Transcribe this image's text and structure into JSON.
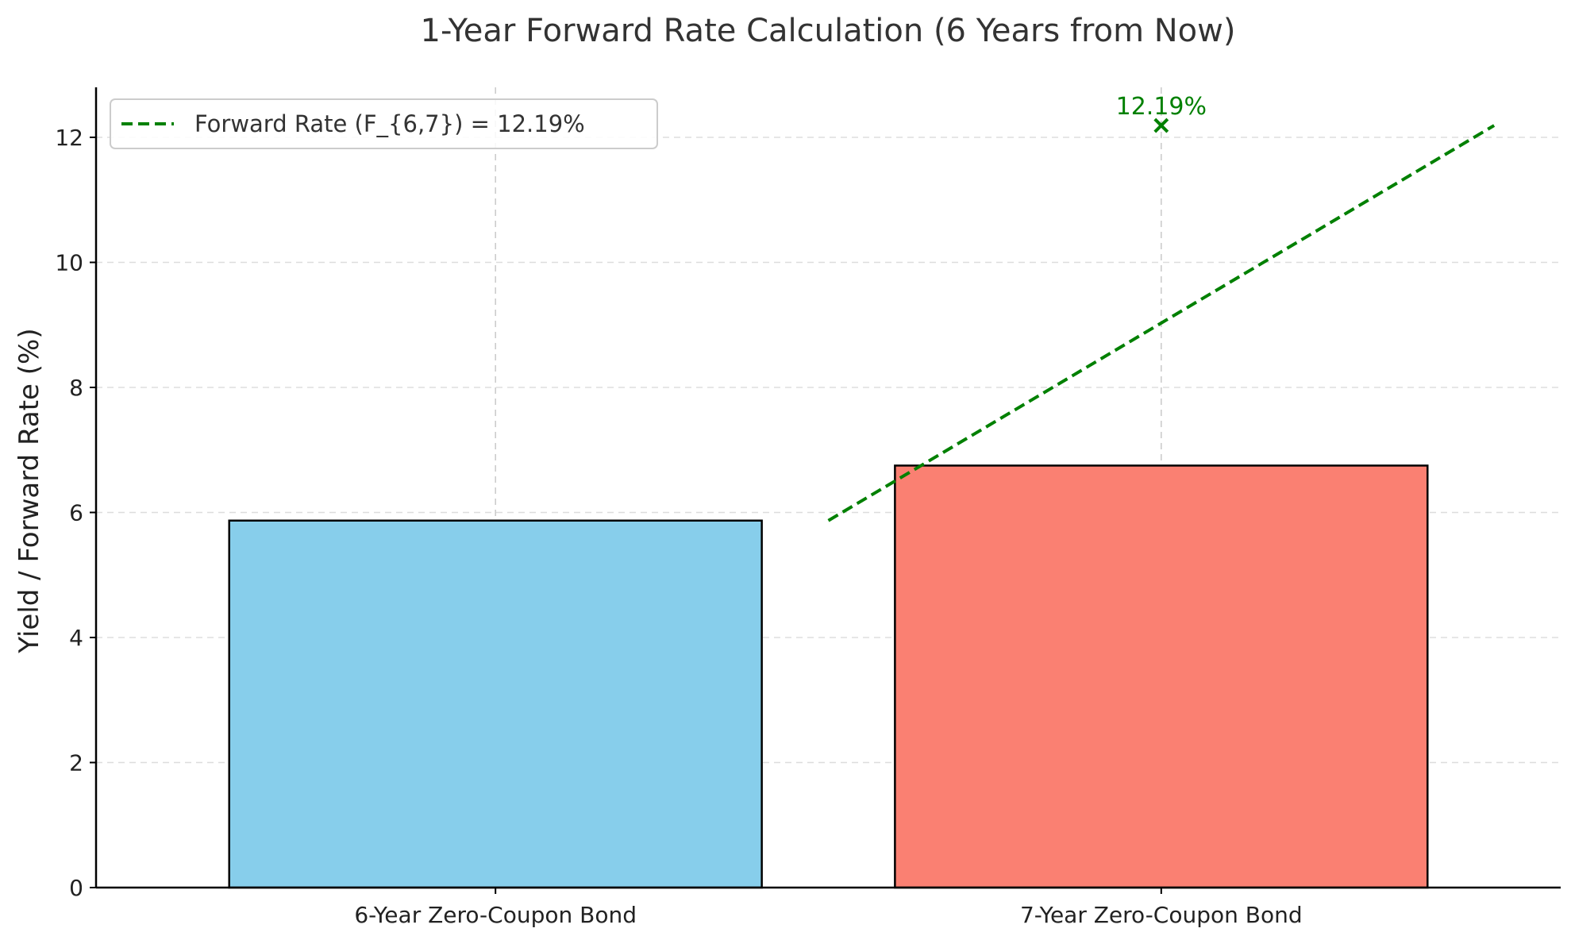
{
  "chart_data": {
    "type": "bar",
    "title": "1-Year Forward Rate Calculation (6 Years from Now)",
    "xlabel": "",
    "ylabel": "Yield / Forward Rate (%)",
    "categories": [
      "6-Year Zero-Coupon Bond",
      "7-Year Zero-Coupon Bond"
    ],
    "values": [
      5.87,
      6.75
    ],
    "bar_colors": [
      "#87CEEB",
      "#FA8072"
    ],
    "edge_color": "#000000",
    "ylim": [
      0,
      12.8
    ],
    "yticks": [
      0,
      2,
      4,
      6,
      8,
      10,
      12
    ],
    "grid": true,
    "forward_line": {
      "name": "Forward Rate (F_{6,7}) = 12.19%",
      "x": [
        0.5,
        1.5
      ],
      "y": [
        5.87,
        12.19
      ],
      "color": "#008000",
      "style": "dashed"
    },
    "forward_marker": {
      "x": 1,
      "y": 12.19,
      "label": "12.19%",
      "color": "#008000"
    },
    "legend_position": "top-left"
  }
}
